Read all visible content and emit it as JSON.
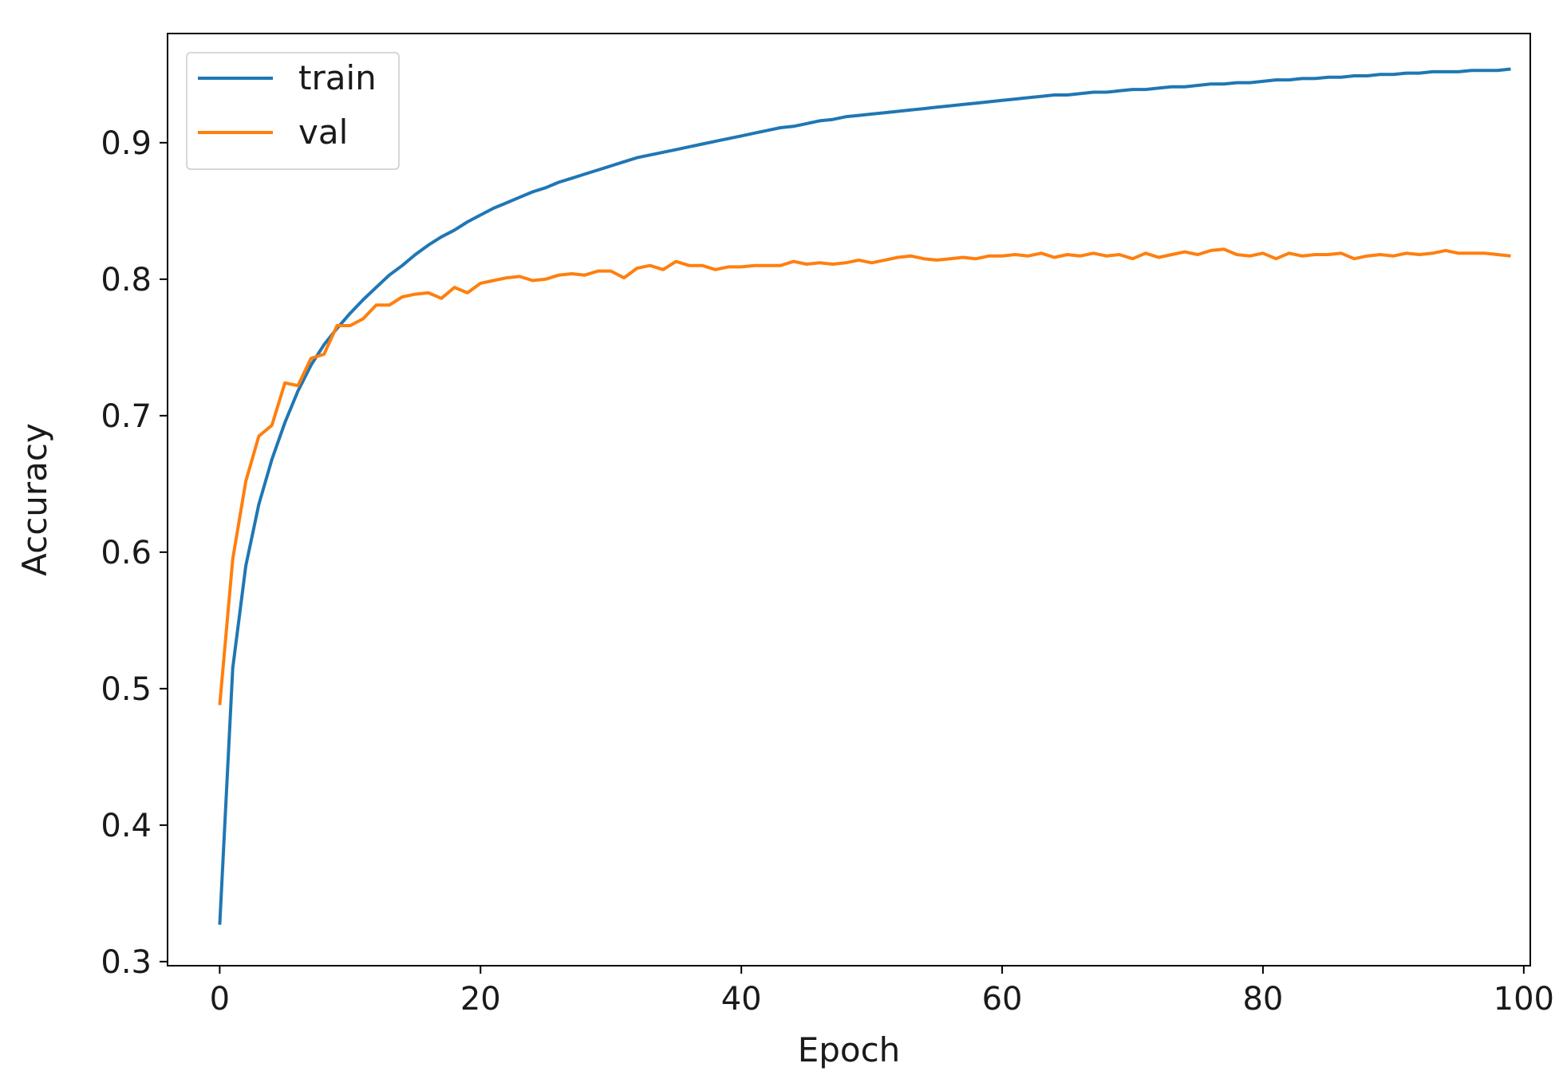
{
  "chart_data": {
    "type": "line",
    "title": "",
    "xlabel": "Epoch",
    "ylabel": "Accuracy",
    "xlim": [
      -4,
      100.5
    ],
    "ylim": [
      0.297,
      0.98
    ],
    "xticks": [
      0,
      20,
      40,
      60,
      80,
      100
    ],
    "xtick_labels": [
      "0",
      "20",
      "40",
      "60",
      "80",
      "100"
    ],
    "yticks": [
      0.3,
      0.4,
      0.5,
      0.6,
      0.7,
      0.8,
      0.9
    ],
    "ytick_labels": [
      "0.3",
      "0.4",
      "0.5",
      "0.6",
      "0.7",
      "0.8",
      "0.9"
    ],
    "grid": false,
    "legend_position": "upper-left",
    "x": [
      0,
      1,
      2,
      3,
      4,
      5,
      6,
      7,
      8,
      9,
      10,
      11,
      12,
      13,
      14,
      15,
      16,
      17,
      18,
      19,
      20,
      21,
      22,
      23,
      24,
      25,
      26,
      27,
      28,
      29,
      30,
      31,
      32,
      33,
      34,
      35,
      36,
      37,
      38,
      39,
      40,
      41,
      42,
      43,
      44,
      45,
      46,
      47,
      48,
      49,
      50,
      51,
      52,
      53,
      54,
      55,
      56,
      57,
      58,
      59,
      60,
      61,
      62,
      63,
      64,
      65,
      66,
      67,
      68,
      69,
      70,
      71,
      72,
      73,
      74,
      75,
      76,
      77,
      78,
      79,
      80,
      81,
      82,
      83,
      84,
      85,
      86,
      87,
      88,
      89,
      90,
      91,
      92,
      93,
      94,
      95,
      96,
      97,
      98,
      99
    ],
    "series": [
      {
        "name": "train",
        "color": "#1f77b4",
        "values": [
          0.327,
          0.515,
          0.59,
          0.635,
          0.668,
          0.695,
          0.718,
          0.737,
          0.752,
          0.764,
          0.775,
          0.785,
          0.794,
          0.803,
          0.81,
          0.818,
          0.825,
          0.831,
          0.836,
          0.842,
          0.847,
          0.852,
          0.856,
          0.86,
          0.864,
          0.867,
          0.871,
          0.874,
          0.877,
          0.88,
          0.883,
          0.886,
          0.889,
          0.891,
          0.893,
          0.895,
          0.897,
          0.899,
          0.901,
          0.903,
          0.905,
          0.907,
          0.909,
          0.911,
          0.912,
          0.914,
          0.916,
          0.917,
          0.919,
          0.92,
          0.921,
          0.922,
          0.923,
          0.924,
          0.925,
          0.926,
          0.927,
          0.928,
          0.929,
          0.93,
          0.931,
          0.932,
          0.933,
          0.934,
          0.935,
          0.935,
          0.936,
          0.937,
          0.937,
          0.938,
          0.939,
          0.939,
          0.94,
          0.941,
          0.941,
          0.942,
          0.943,
          0.943,
          0.944,
          0.944,
          0.945,
          0.946,
          0.946,
          0.947,
          0.947,
          0.948,
          0.948,
          0.949,
          0.949,
          0.95,
          0.95,
          0.951,
          0.951,
          0.952,
          0.952,
          0.952,
          0.953,
          0.953,
          0.953,
          0.954
        ]
      },
      {
        "name": "val",
        "color": "#ff7f0e",
        "values": [
          0.488,
          0.595,
          0.652,
          0.685,
          0.693,
          0.724,
          0.722,
          0.742,
          0.745,
          0.766,
          0.766,
          0.771,
          0.781,
          0.781,
          0.787,
          0.789,
          0.79,
          0.786,
          0.794,
          0.79,
          0.797,
          0.799,
          0.801,
          0.802,
          0.799,
          0.8,
          0.803,
          0.804,
          0.803,
          0.806,
          0.806,
          0.801,
          0.808,
          0.81,
          0.807,
          0.813,
          0.81,
          0.81,
          0.807,
          0.809,
          0.809,
          0.81,
          0.81,
          0.81,
          0.813,
          0.811,
          0.812,
          0.811,
          0.812,
          0.814,
          0.812,
          0.814,
          0.816,
          0.817,
          0.815,
          0.814,
          0.815,
          0.816,
          0.815,
          0.817,
          0.817,
          0.818,
          0.817,
          0.819,
          0.816,
          0.818,
          0.817,
          0.819,
          0.817,
          0.818,
          0.815,
          0.819,
          0.816,
          0.818,
          0.82,
          0.818,
          0.821,
          0.822,
          0.818,
          0.817,
          0.819,
          0.815,
          0.819,
          0.817,
          0.818,
          0.818,
          0.819,
          0.815,
          0.817,
          0.818,
          0.817,
          0.819,
          0.818,
          0.819,
          0.821,
          0.819,
          0.819,
          0.819,
          0.818,
          0.817
        ]
      }
    ]
  }
}
